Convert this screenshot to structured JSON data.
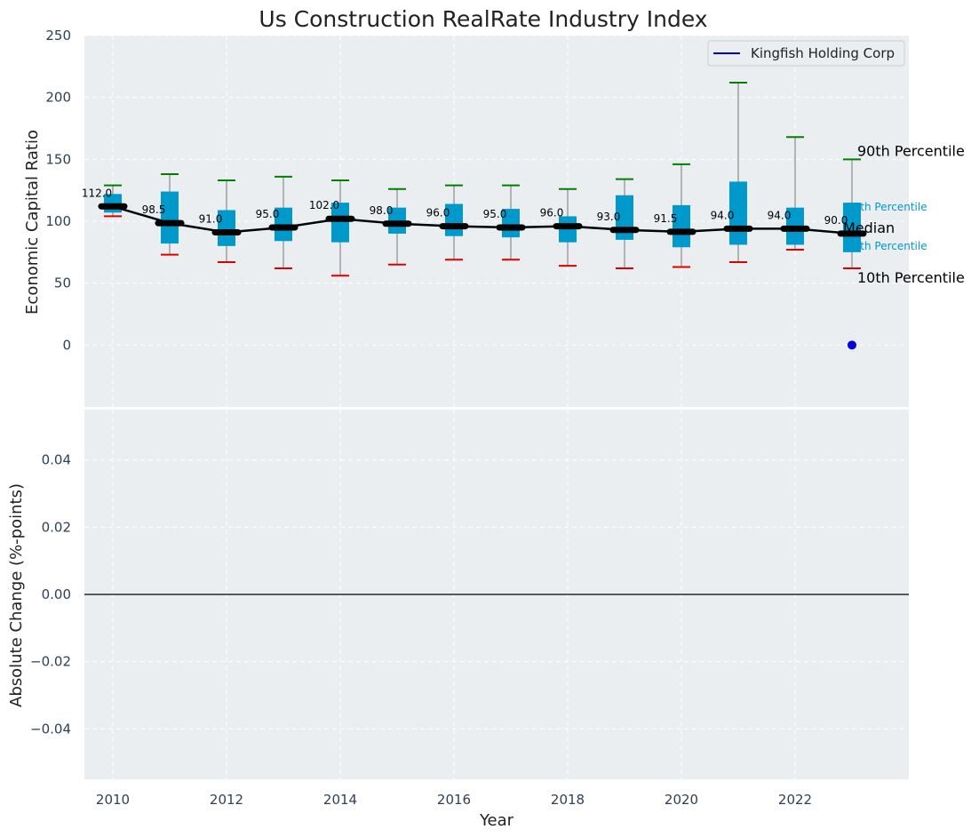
{
  "chart_data": [
    {
      "type": "box",
      "title": "Us Construction RealRate Industry Index",
      "xlabel": "",
      "ylabel": "Economic Capital Ratio",
      "ylim": [
        -50,
        250
      ],
      "yticks": [
        0,
        50,
        100,
        150,
        200,
        250
      ],
      "xlim": [
        2009.5,
        2024.0
      ],
      "grid": true,
      "legend": {
        "position": "top-right",
        "entries": [
          {
            "name": "Kingfish Holding Corp",
            "color": "#0000cc"
          }
        ]
      },
      "years": [
        2010,
        2011,
        2012,
        2013,
        2014,
        2015,
        2016,
        2017,
        2018,
        2019,
        2020,
        2021,
        2022,
        2023
      ],
      "p10": [
        104,
        73,
        67,
        62,
        56,
        65,
        69,
        69,
        64,
        62,
        63,
        67,
        77,
        62
      ],
      "q1": [
        107,
        82,
        80,
        84,
        83,
        90,
        88,
        87,
        83,
        85,
        79,
        81,
        81,
        75
      ],
      "median": [
        112.0,
        98.5,
        91.0,
        95.0,
        102.0,
        98.0,
        96.0,
        95.0,
        96.0,
        93.0,
        91.5,
        94.0,
        94.0,
        90.0
      ],
      "median_labels": [
        "112.0",
        "98.5",
        "91.0",
        "95.0",
        "102.0",
        "98.0",
        "96.0",
        "95.0",
        "96.0",
        "93.0",
        "91.5",
        "94.0",
        "94.0",
        "90.0"
      ],
      "q3": [
        122,
        124,
        109,
        111,
        115,
        111,
        114,
        110,
        104,
        121,
        113,
        132,
        111,
        115
      ],
      "p90": [
        129,
        138,
        133,
        136,
        133,
        126,
        129,
        129,
        126,
        134,
        146,
        212,
        168,
        150
      ],
      "company_points": [
        {
          "x": 2023,
          "y": 0,
          "series": "Kingfish Holding Corp"
        }
      ],
      "annotations": {
        "p90_label": "90th Percentile",
        "p75_label": "75th Percentile",
        "median_label": "Median",
        "p25_label": "25th Percentile",
        "p10_label": "10th Percentile"
      }
    },
    {
      "type": "line",
      "title": "",
      "xlabel": "Year",
      "ylabel": "Absolute Change (%-points)",
      "ylim": [
        -0.055,
        0.055
      ],
      "yticks": [
        -0.04,
        -0.02,
        0.0,
        0.02,
        0.04
      ],
      "ytick_labels": [
        "−0.04",
        "−0.02",
        "0.00",
        "0.02",
        "0.04"
      ],
      "xticks": [
        2010,
        2012,
        2014,
        2016,
        2018,
        2020,
        2022
      ],
      "xlim": [
        2009.5,
        2024.0
      ],
      "grid": true,
      "reference_line": 0,
      "series": []
    }
  ],
  "colors": {
    "plot_bg": "#eaeef0",
    "box_fill": "#0099cc",
    "p90_cap": "#008000",
    "p10_cap": "#dd0000",
    "median_line": "#000000",
    "whisker": "#8a8a8a",
    "company": "#0000dd",
    "tick_text": "#2d4156",
    "inner_label": "#0099cc"
  }
}
